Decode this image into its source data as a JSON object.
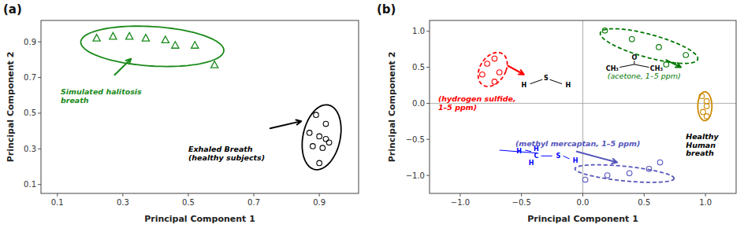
{
  "chart_data": [
    {
      "type": "scatter",
      "title": "(a)",
      "xlabel": "Principal Component 1",
      "ylabel": "Principal Component 2",
      "xlim": [
        0.05,
        1.02
      ],
      "ylim": [
        0.05,
        1.02
      ],
      "xticks": [
        0.1,
        0.3,
        0.5,
        0.7,
        0.9
      ],
      "yticks": [
        0.1,
        0.3,
        0.5,
        0.7,
        0.9
      ],
      "grid": false,
      "series": [
        {
          "color": "#1a8a1a",
          "marker": "triangle",
          "x": [
            0.22,
            0.27,
            0.32,
            0.37,
            0.43,
            0.46,
            0.52,
            0.58
          ],
          "values": [
            0.92,
            0.93,
            0.93,
            0.92,
            0.91,
            0.88,
            0.88,
            0.77
          ],
          "ellipse": {
            "cx": 0.39,
            "cy": 0.875,
            "w": 0.44,
            "h": 0.22,
            "angle": -8
          },
          "arrow": {
            "start": [
              0.275,
              0.715
            ],
            "end": [
              0.325,
              0.805
            ]
          }
        },
        {
          "color": "#000000",
          "marker": "circle",
          "x": [
            0.89,
            0.92,
            0.87,
            0.9,
            0.92,
            0.93,
            0.88,
            0.91,
            0.9
          ],
          "values": [
            0.49,
            0.44,
            0.39,
            0.37,
            0.355,
            0.335,
            0.315,
            0.305,
            0.22
          ],
          "ellipse": {
            "cx": 0.907,
            "cy": 0.365,
            "w": 0.115,
            "h": 0.365,
            "angle": -5
          },
          "arrow": {
            "start": [
              0.75,
              0.415
            ],
            "end": [
              0.845,
              0.455
            ]
          }
        }
      ],
      "annotations": [
        {
          "text": "Simulated halitosis\nbreath",
          "x": 0.11,
          "y": 0.645,
          "color": "#1a8a1a"
        },
        {
          "text": "Exhaled Breath\n(healthy subjects)",
          "x": 0.5,
          "y": 0.32,
          "color": "#000000"
        }
      ]
    },
    {
      "type": "scatter",
      "title": "(b)",
      "xlabel": "Principal Component 1",
      "ylabel": "Principal Component 2",
      "xlim": [
        -1.25,
        1.25
      ],
      "ylim": [
        -1.25,
        1.15
      ],
      "xticks": [
        {
          "value": -1.0,
          "label": "−1.0"
        },
        {
          "value": -0.5,
          "label": "−0.5"
        },
        {
          "value": 0.0,
          "label": "0.0"
        },
        {
          "value": 0.5,
          "label": "0.5"
        },
        {
          "value": 1.0,
          "label": "1.0"
        }
      ],
      "yticks": [
        {
          "value": -1.0,
          "label": "−1.0"
        },
        {
          "value": -0.5,
          "label": "−0.5"
        },
        {
          "value": 0.0,
          "label": "0.0"
        },
        {
          "value": 0.5,
          "label": "0.5"
        },
        {
          "value": 1.0,
          "label": "1.0"
        }
      ],
      "grid": false,
      "hlines": [
        0
      ],
      "vlines": [
        0
      ],
      "series": [
        {
          "color": "#ff0000",
          "marker": "circle",
          "line_style": "dashed",
          "x": [
            -0.72,
            -0.78,
            -0.68,
            -0.82,
            -0.72
          ],
          "values": [
            0.62,
            0.55,
            0.43,
            0.4,
            0.3
          ],
          "ellipse": {
            "cx": -0.735,
            "cy": 0.47,
            "w": 0.22,
            "h": 0.48,
            "angle": -12
          },
          "arrow": {
            "start": [
              -0.61,
              0.52
            ],
            "end": [
              -0.48,
              0.4
            ]
          }
        },
        {
          "color": "#007700",
          "marker": "circle",
          "line_style": "dashed",
          "x": [
            0.18,
            0.4,
            0.62,
            0.84,
            0.68
          ],
          "values": [
            1.01,
            0.89,
            0.78,
            0.67,
            0.54
          ],
          "ellipse": {
            "cx": 0.54,
            "cy": 0.795,
            "w": 0.88,
            "h": 0.3,
            "angle": -27
          },
          "arrow": {
            "start": [
              0.68,
              0.6
            ],
            "end": [
              0.8,
              0.5
            ]
          }
        },
        {
          "color": "#cc8800",
          "marker": "circle",
          "line_style": "solid",
          "x": [
            0.97,
            1.01,
            1.01,
            0.98,
            1.01
          ],
          "values": [
            0.1,
            0.03,
            -0.04,
            -0.12,
            -0.18
          ],
          "ellipse": {
            "cx": 0.995,
            "cy": -0.04,
            "w": 0.115,
            "h": 0.4,
            "angle": 0
          }
        },
        {
          "color": "#5555bb",
          "marker": "circle",
          "line_style": "dashed",
          "x": [
            0.02,
            0.2,
            0.38,
            0.54,
            0.63
          ],
          "values": [
            -1.06,
            -1.0,
            -0.97,
            -0.91,
            -0.82
          ],
          "ellipse": {
            "cx": 0.34,
            "cy": -0.975,
            "w": 0.82,
            "h": 0.2,
            "angle": -10
          },
          "arrow": {
            "start": [
              -0.05,
              -0.67
            ],
            "end": [
              0.28,
              -0.82
            ]
          }
        }
      ],
      "annotations": [
        {
          "text": "(hydrogen sulfide,\n1–5 ppm)",
          "x": -1.18,
          "y": 0.12,
          "color": "#ff0000"
        },
        {
          "text": "Healthy\nHuman\nbreath",
          "x": 0.84,
          "y": -0.4,
          "color": "#000000"
        },
        {
          "text": "(methyl mercaptan, 1–5 ppm)",
          "x": -0.55,
          "y": -0.5,
          "color": "#5555bb"
        }
      ],
      "molecules": [
        {
          "color": "#000000",
          "atoms": [
            {
              "text": "S",
              "x": -0.3,
              "y": 0.35
            },
            {
              "text": "H",
              "x": -0.48,
              "y": 0.25
            },
            {
              "text": "H",
              "x": -0.12,
              "y": 0.25
            }
          ],
          "bonds": [
            {
              "x": [
                -0.43,
                -0.33
              ],
              "y": [
                0.27,
                0.33
              ]
            },
            {
              "x": [
                -0.27,
                -0.17
              ],
              "y": [
                0.33,
                0.27
              ]
            }
          ]
        },
        {
          "color": "#000000",
          "atoms": [
            {
              "text": "O",
              "x": 0.42,
              "y": 0.63
            },
            {
              "text": "CH₃",
              "x": 0.24,
              "y": 0.48
            },
            {
              "text": "CH₃",
              "x": 0.6,
              "y": 0.48
            }
          ],
          "bonds": [
            {
              "x": [
                0.42,
                0.42
              ],
              "y": [
                0.59,
                0.54
              ]
            },
            {
              "x": [
                0.3,
                0.42
              ],
              "y": [
                0.5,
                0.54
              ]
            },
            {
              "x": [
                0.42,
                0.54
              ],
              "y": [
                0.54,
                0.5
              ]
            }
          ],
          "caption": {
            "text": "(acetone, 1–5 ppm)",
            "x": 0.5,
            "y": 0.44,
            "color": "#007700"
          }
        },
        {
          "color": "#0000ff",
          "atoms": [
            {
              "text": "C",
              "x": -0.38,
              "y": -0.73
            },
            {
              "text": "H",
              "x": -0.38,
              "y": -0.63
            },
            {
              "text": "H",
              "x": -0.52,
              "y": -0.67
            },
            {
              "text": "H",
              "x": -0.42,
              "y": -0.83
            },
            {
              "text": "S",
              "x": -0.2,
              "y": -0.73
            },
            {
              "text": "H",
              "x": -0.06,
              "y": -0.8
            }
          ],
          "bonds": [
            {
              "x": [
                -0.34,
                -0.25
              ],
              "y": [
                -0.73,
                -0.73
              ]
            },
            {
              "x": [
                -0.16,
                -0.11
              ],
              "y": [
                -0.73,
                -0.77
              ]
            },
            {
              "x": [
                -0.42,
                -0.47
              ],
              "y": [
                -0.67,
                -0.65
              ]
            },
            {
              "x": [
                -0.38,
                -0.68
              ],
              "y": [
                -0.69,
                -0.65
              ]
            }
          ]
        }
      ]
    }
  ]
}
